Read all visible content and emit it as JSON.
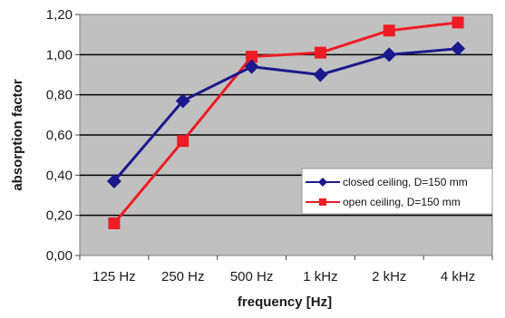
{
  "chart_data": {
    "type": "line",
    "title": "",
    "xlabel": "frequency [Hz]",
    "ylabel": "absorption factor",
    "categories": [
      "125 Hz",
      "250 Hz",
      "500 Hz",
      "1 kHz",
      "2 kHz",
      "4 kHz"
    ],
    "ylim": [
      0,
      1.2
    ],
    "yticks": [
      "0,00",
      "0,20",
      "0,40",
      "0,60",
      "0,80",
      "1,00",
      "1,20"
    ],
    "grid": true,
    "legend_position": "bottom-right",
    "series": [
      {
        "name": "closed ceiling, D=150 mm",
        "color": "#1a1a8c",
        "marker": "diamond",
        "values": [
          0.37,
          0.77,
          0.94,
          0.9,
          1.0,
          1.03
        ]
      },
      {
        "name": "open ceiling, D=150 mm",
        "color": "#ee1c24",
        "marker": "square",
        "values": [
          0.16,
          0.57,
          0.99,
          1.01,
          1.12,
          1.16
        ]
      }
    ],
    "plot_background": "#c0c0c0"
  }
}
